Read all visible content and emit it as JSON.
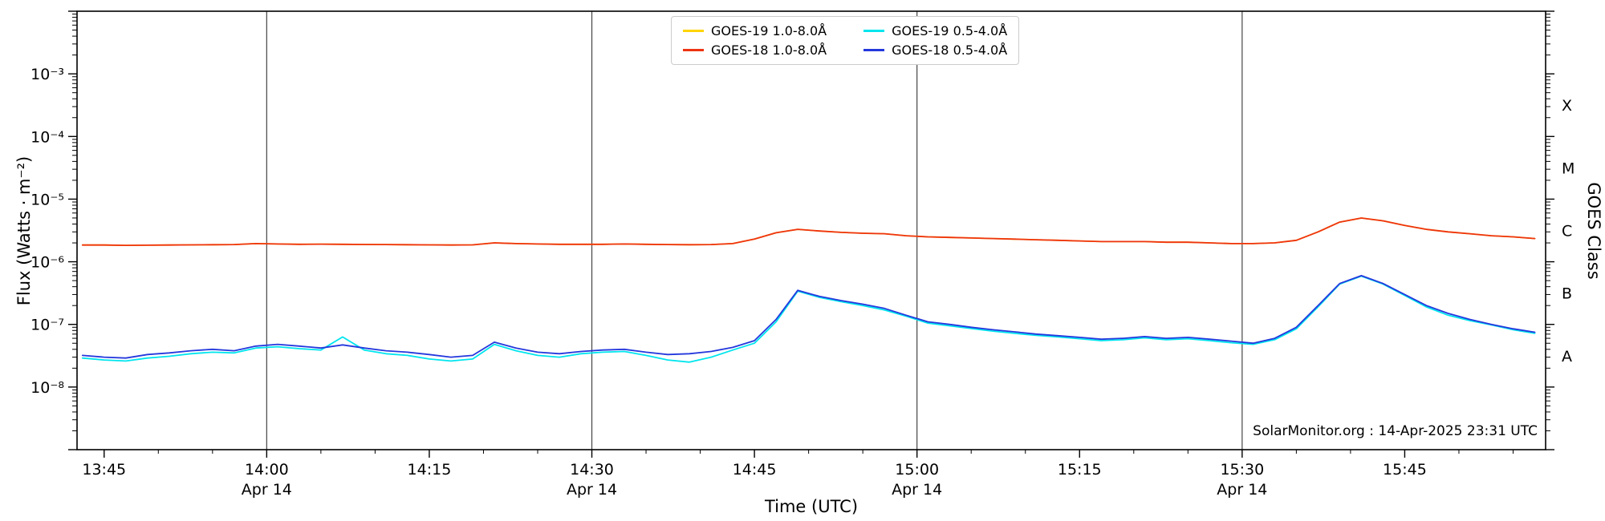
{
  "chart_data": {
    "type": "line",
    "xlabel": "Time (UTC)",
    "ylabel": "Flux (Watts · m⁻²)",
    "ylabel_right": "GOES Class",
    "watermark": "SolarMonitor.org : 14-Apr-2025 23:31 UTC",
    "grid": "vertical-only",
    "legend_position": "top-center",
    "xlim_minutes_utc": [
      822.5,
      958
    ],
    "ylim": [
      1e-09,
      0.01
    ],
    "gridlines_minutes": [
      840,
      870,
      900,
      930
    ],
    "colors": {
      "gridline": "#444444",
      "axis": "#000000",
      "legend_border": "#cccccc",
      "background": "#ffffff"
    },
    "y_ticks": [
      {
        "value": 0.001,
        "label": "10⁻³"
      },
      {
        "value": 0.0001,
        "label": "10⁻⁴"
      },
      {
        "value": 1e-05,
        "label": "10⁻⁵"
      },
      {
        "value": 1e-06,
        "label": "10⁻⁶"
      },
      {
        "value": 1e-07,
        "label": "10⁻⁷"
      },
      {
        "value": 1e-08,
        "label": "10⁻⁸"
      }
    ],
    "goes_classes": [
      {
        "label": "X",
        "value": 0.000316
      },
      {
        "label": "M",
        "value": 3.16e-05
      },
      {
        "label": "C",
        "value": 3.16e-06
      },
      {
        "label": "B",
        "value": 3.16e-07
      },
      {
        "label": "A",
        "value": 3.16e-08
      }
    ],
    "x_ticks": [
      {
        "minutes": 825,
        "label": "13:45",
        "date": ""
      },
      {
        "minutes": 840,
        "label": "14:00",
        "date": "Apr 14"
      },
      {
        "minutes": 855,
        "label": "14:15",
        "date": ""
      },
      {
        "minutes": 870,
        "label": "14:30",
        "date": "Apr 14"
      },
      {
        "minutes": 885,
        "label": "14:45",
        "date": ""
      },
      {
        "minutes": 900,
        "label": "15:00",
        "date": "Apr 14"
      },
      {
        "minutes": 915,
        "label": "15:15",
        "date": ""
      },
      {
        "minutes": 930,
        "label": "15:30",
        "date": "Apr 14"
      },
      {
        "minutes": 945,
        "label": "15:45",
        "date": ""
      }
    ],
    "x_minutes_utc": [
      823,
      825,
      827,
      829,
      831,
      833,
      835,
      837,
      839,
      841,
      843,
      845,
      847,
      849,
      851,
      853,
      855,
      857,
      859,
      861,
      863,
      865,
      867,
      869,
      871,
      873,
      875,
      877,
      879,
      881,
      883,
      885,
      887,
      889,
      891,
      893,
      895,
      897,
      899,
      901,
      903,
      905,
      907,
      909,
      911,
      913,
      915,
      917,
      919,
      921,
      923,
      925,
      927,
      929,
      931,
      933,
      935,
      937,
      939,
      941,
      943,
      945,
      947,
      949,
      951,
      953,
      955,
      957
    ],
    "series": [
      {
        "id": "goes19-long",
        "name": "GOES-19 1.0-8.0Å",
        "color": "#ffd400",
        "values": [
          1.85e-06,
          1.85e-06,
          1.83e-06,
          1.84e-06,
          1.85e-06,
          1.86e-06,
          1.87e-06,
          1.88e-06,
          1.95e-06,
          1.92e-06,
          1.9e-06,
          1.91e-06,
          1.9e-06,
          1.89e-06,
          1.88e-06,
          1.87e-06,
          1.86e-06,
          1.85e-06,
          1.86e-06,
          2e-06,
          1.95e-06,
          1.92e-06,
          1.9e-06,
          1.9e-06,
          1.9e-06,
          1.92e-06,
          1.9e-06,
          1.88e-06,
          1.87e-06,
          1.88e-06,
          1.95e-06,
          2.3e-06,
          2.9e-06,
          3.3e-06,
          3.1e-06,
          2.95e-06,
          2.85e-06,
          2.8e-06,
          2.6e-06,
          2.5e-06,
          2.45e-06,
          2.4e-06,
          2.35e-06,
          2.3e-06,
          2.25e-06,
          2.2e-06,
          2.15e-06,
          2.1e-06,
          2.1e-06,
          2.1e-06,
          2.05e-06,
          2.05e-06,
          2e-06,
          1.95e-06,
          1.95e-06,
          2e-06,
          2.2e-06,
          3e-06,
          4.3e-06,
          5e-06,
          4.5e-06,
          3.8e-06,
          3.3e-06,
          3e-06,
          2.8e-06,
          2.6e-06,
          2.5e-06,
          2.35e-06
        ]
      },
      {
        "id": "goes18-long",
        "name": "GOES-18 1.0-8.0Å",
        "color": "#ee3311",
        "values": [
          1.85e-06,
          1.85e-06,
          1.83e-06,
          1.84e-06,
          1.85e-06,
          1.86e-06,
          1.87e-06,
          1.88e-06,
          1.95e-06,
          1.92e-06,
          1.9e-06,
          1.91e-06,
          1.9e-06,
          1.89e-06,
          1.88e-06,
          1.87e-06,
          1.86e-06,
          1.85e-06,
          1.86e-06,
          2e-06,
          1.95e-06,
          1.92e-06,
          1.9e-06,
          1.9e-06,
          1.9e-06,
          1.92e-06,
          1.9e-06,
          1.88e-06,
          1.87e-06,
          1.88e-06,
          1.95e-06,
          2.3e-06,
          2.9e-06,
          3.3e-06,
          3.1e-06,
          2.95e-06,
          2.85e-06,
          2.8e-06,
          2.6e-06,
          2.5e-06,
          2.45e-06,
          2.4e-06,
          2.35e-06,
          2.3e-06,
          2.25e-06,
          2.2e-06,
          2.15e-06,
          2.1e-06,
          2.1e-06,
          2.1e-06,
          2.05e-06,
          2.05e-06,
          2e-06,
          1.95e-06,
          1.95e-06,
          2e-06,
          2.2e-06,
          3e-06,
          4.3e-06,
          5e-06,
          4.5e-06,
          3.8e-06,
          3.3e-06,
          3e-06,
          2.8e-06,
          2.6e-06,
          2.5e-06,
          2.35e-06
        ]
      },
      {
        "id": "goes19-short",
        "name": "GOES-19 0.5-4.0Å",
        "color": "#00e5ee",
        "values": [
          2.9e-08,
          2.7e-08,
          2.6e-08,
          2.9e-08,
          3.1e-08,
          3.4e-08,
          3.6e-08,
          3.5e-08,
          4.2e-08,
          4.4e-08,
          4.1e-08,
          3.9e-08,
          6.3e-08,
          3.9e-08,
          3.4e-08,
          3.2e-08,
          2.8e-08,
          2.6e-08,
          2.8e-08,
          4.8e-08,
          3.8e-08,
          3.2e-08,
          3e-08,
          3.4e-08,
          3.6e-08,
          3.7e-08,
          3.2e-08,
          2.7e-08,
          2.5e-08,
          3e-08,
          3.9e-08,
          5e-08,
          1.1e-07,
          3.4e-07,
          2.7e-07,
          2.3e-07,
          2e-07,
          1.7e-07,
          1.35e-07,
          1.05e-07,
          9.5e-08,
          8.6e-08,
          7.8e-08,
          7.2e-08,
          6.7e-08,
          6.3e-08,
          5.9e-08,
          5.5e-08,
          5.7e-08,
          6.1e-08,
          5.7e-08,
          5.9e-08,
          5.5e-08,
          5.1e-08,
          4.8e-08,
          5.7e-08,
          8.5e-08,
          1.9e-07,
          4.4e-07,
          5.9e-07,
          4.4e-07,
          2.9e-07,
          1.9e-07,
          1.4e-07,
          1.15e-07,
          9.8e-08,
          8.2e-08,
          7.2e-08
        ]
      },
      {
        "id": "goes18-short",
        "name": "GOES-18 0.5-4.0Å",
        "color": "#2438dd",
        "values": [
          3.2e-08,
          3e-08,
          2.9e-08,
          3.3e-08,
          3.5e-08,
          3.8e-08,
          4e-08,
          3.8e-08,
          4.5e-08,
          4.8e-08,
          4.5e-08,
          4.2e-08,
          4.7e-08,
          4.2e-08,
          3.8e-08,
          3.6e-08,
          3.3e-08,
          3e-08,
          3.2e-08,
          5.2e-08,
          4.2e-08,
          3.6e-08,
          3.4e-08,
          3.7e-08,
          3.9e-08,
          4e-08,
          3.6e-08,
          3.3e-08,
          3.4e-08,
          3.7e-08,
          4.3e-08,
          5.5e-08,
          1.2e-07,
          3.5e-07,
          2.8e-07,
          2.4e-07,
          2.1e-07,
          1.8e-07,
          1.4e-07,
          1.1e-07,
          1e-07,
          9e-08,
          8.2e-08,
          7.6e-08,
          7e-08,
          6.6e-08,
          6.2e-08,
          5.8e-08,
          6e-08,
          6.4e-08,
          6e-08,
          6.2e-08,
          5.8e-08,
          5.4e-08,
          5e-08,
          6e-08,
          9e-08,
          2e-07,
          4.5e-07,
          6e-07,
          4.5e-07,
          3e-07,
          2e-07,
          1.5e-07,
          1.2e-07,
          1e-07,
          8.5e-08,
          7.5e-08
        ]
      }
    ]
  }
}
